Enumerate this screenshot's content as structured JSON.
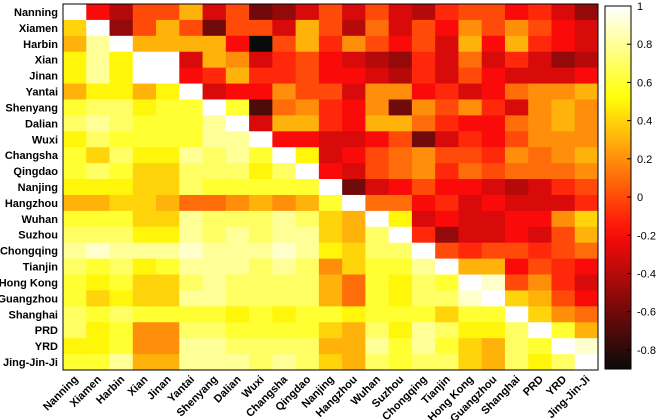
{
  "chart_data": {
    "type": "heatmap",
    "title": "",
    "xlabel": "",
    "ylabel": "",
    "cities": [
      "Nanning",
      "Xiamen",
      "Harbin",
      "Xian",
      "Jinan",
      "Yantai",
      "Shenyang",
      "Dalian",
      "Wuxi",
      "Changsha",
      "Qingdao",
      "Nanjing",
      "Hangzhou",
      "Wuhan",
      "Suzhou",
      "Chongqing",
      "Tianjin",
      "Hong Kong",
      "Guangzhou",
      "Shanghai",
      "PRD",
      "YRD",
      "Jing-Jin-Ji"
    ],
    "colorbar": {
      "range": [
        -0.9,
        1
      ],
      "ticks": [
        -0.8,
        -0.6,
        -0.4,
        -0.2,
        0,
        0.2,
        0.4,
        0.6,
        0.8,
        1
      ],
      "tick_labels": [
        "-0.8",
        "-0.6",
        "-0.4",
        "-0.2",
        "0",
        "0.2",
        "0.4",
        "0.6",
        "0.8",
        "1"
      ],
      "colormap": "hot"
    },
    "values": [
      [
        1,
        -0.2,
        -0.4,
        0,
        0,
        0.3,
        -0.3,
        0,
        -0.6,
        -0.5,
        -0.3,
        0,
        -0.3,
        0,
        -0.3,
        -0.4,
        -0.1,
        0,
        0,
        -0.2,
        -0.1,
        -0.3,
        -0.5
      ],
      [
        0.4,
        1,
        -0.5,
        0,
        0.3,
        0,
        -0.6,
        0,
        0,
        -0.3,
        0.3,
        0,
        -0.4,
        0.1,
        -0.3,
        0,
        -0.2,
        0.2,
        0,
        0.2,
        0,
        -0.2,
        -0.3
      ],
      [
        0.3,
        0.8,
        1,
        0.3,
        0.3,
        0.3,
        0.3,
        -0.2,
        -0.9,
        0,
        0.3,
        -0.1,
        0.2,
        0,
        -0.2,
        0,
        -0.3,
        0.3,
        -0.2,
        0.3,
        -0.1,
        -0.2,
        -0.3
      ],
      [
        0.5,
        0.8,
        0.5,
        1,
        1,
        -0.3,
        0.3,
        0.2,
        -0.3,
        -0.1,
        0,
        -0.2,
        -0.3,
        -0.4,
        -0.5,
        -0.1,
        -0.3,
        0.1,
        -0.3,
        -0.1,
        -0.3,
        -0.5,
        -0.4
      ],
      [
        0.5,
        0.8,
        0.5,
        1,
        1,
        -0.2,
        -0.1,
        0.3,
        -0.1,
        -0.1,
        0,
        -0.2,
        -0.2,
        -0.3,
        -0.4,
        -0.1,
        -0.3,
        0,
        -0.2,
        -0.3,
        -0.3,
        -0.3,
        -0.2
      ],
      [
        0.3,
        0.5,
        0.5,
        0.3,
        0.5,
        1,
        -0.3,
        -0.2,
        -0.2,
        0.2,
        0,
        0,
        -0.3,
        0.2,
        0.2,
        -0.2,
        -0.1,
        -0.3,
        -0.2,
        0.1,
        0.2,
        0.2,
        0.3
      ],
      [
        0.6,
        0.7,
        0.7,
        0.5,
        0.6,
        0.6,
        1,
        0.6,
        -0.7,
        0.1,
        0.2,
        -0.1,
        -0.2,
        0.2,
        -0.6,
        0.2,
        0,
        0.2,
        -0.1,
        -0.3,
        0.2,
        0.3,
        0.2
      ],
      [
        0.7,
        0.8,
        0.7,
        0.6,
        0.6,
        0.6,
        0.8,
        1,
        -0.3,
        0.3,
        0.3,
        -0.1,
        -0.2,
        0.3,
        0.3,
        0.1,
        -0.1,
        -0.2,
        -0.2,
        0.1,
        0.2,
        0.3,
        0.2
      ],
      [
        0.5,
        0.7,
        0.6,
        0.6,
        0.6,
        0.6,
        0.8,
        0.8,
        1,
        -0.2,
        -0.2,
        -0.3,
        -0.3,
        -0.2,
        0,
        -0.6,
        -0.3,
        -0.1,
        -0.2,
        0,
        0.2,
        0.2,
        0.2
      ],
      [
        0.6,
        0.4,
        0.7,
        0.5,
        0.5,
        0.8,
        0.7,
        0.8,
        0.6,
        1,
        0.5,
        -0.3,
        -0.2,
        0,
        0.1,
        0.2,
        0,
        0,
        -0.1,
        0.2,
        0.1,
        0.2,
        0.3
      ],
      [
        0.6,
        0.7,
        0.6,
        0.4,
        0.4,
        0.7,
        0.7,
        0.7,
        0.5,
        0.7,
        1,
        -0.2,
        -0.3,
        0,
        0.1,
        0.2,
        -0.1,
        0.1,
        0,
        0.1,
        0.1,
        0.1,
        0.2
      ],
      [
        0.5,
        0.5,
        0.5,
        0.4,
        0.4,
        0.7,
        0.6,
        0.6,
        0.6,
        0.6,
        0.6,
        1,
        -0.6,
        -0.3,
        -0.2,
        0,
        -0.2,
        -0.2,
        -0.3,
        -0.4,
        -0.3,
        -0.1,
        0
      ],
      [
        0.3,
        0.3,
        0.4,
        0.4,
        0.3,
        0.1,
        0.1,
        0.2,
        0.3,
        0.2,
        0.3,
        0.6,
        1,
        0.1,
        0.1,
        -0.2,
        -0.1,
        -0.3,
        -0.2,
        -0.3,
        -0.3,
        -0.3,
        -0.1
      ],
      [
        0.6,
        0.6,
        0.6,
        0.4,
        0.4,
        0.8,
        0.7,
        0.7,
        0.7,
        0.8,
        0.7,
        0.4,
        0.3,
        1,
        0.5,
        -0.3,
        -0.2,
        -0.3,
        -0.3,
        -0.2,
        -0.2,
        0.2,
        0.4
      ],
      [
        0.7,
        0.7,
        0.7,
        0.5,
        0.5,
        0.8,
        0.7,
        0.8,
        0.7,
        0.8,
        0.8,
        0.4,
        0.3,
        0.7,
        1,
        -0.1,
        -0.5,
        -0.3,
        -0.3,
        -0.2,
        -0.3,
        0,
        0.3
      ],
      [
        0.8,
        0.9,
        0.8,
        0.8,
        0.8,
        0.9,
        0.8,
        0.8,
        0.8,
        0.9,
        0.8,
        0.5,
        0.4,
        0.7,
        0.7,
        1,
        0,
        -0.1,
        0,
        0,
        -0.1,
        0,
        0.1
      ],
      [
        0.7,
        0.6,
        0.7,
        0.5,
        0.6,
        0.8,
        0.8,
        0.8,
        0.7,
        0.8,
        0.7,
        0.2,
        0.4,
        0.6,
        0.6,
        0.8,
        1,
        0.3,
        0.3,
        -0.2,
        0,
        -0.1,
        -0.2
      ],
      [
        0.6,
        0.5,
        0.6,
        0.4,
        0.4,
        0.7,
        0.8,
        0.7,
        0.7,
        0.7,
        0.7,
        0.3,
        0.1,
        0.6,
        0.5,
        0.7,
        0.6,
        1,
        0.9,
        0,
        0.2,
        -0.1,
        -0.3
      ],
      [
        0.6,
        0.4,
        0.5,
        0.4,
        0.4,
        0.8,
        0.8,
        0.7,
        0.7,
        0.7,
        0.7,
        0.3,
        0.1,
        0.6,
        0.5,
        0.7,
        0.7,
        0.9,
        1,
        0.4,
        0.3,
        0,
        -0.2
      ],
      [
        0.7,
        0.6,
        0.7,
        0.6,
        0.6,
        0.6,
        0.6,
        0.5,
        0.6,
        0.5,
        0.6,
        0.6,
        0.5,
        0.6,
        0.6,
        0.6,
        0.4,
        0.6,
        0.6,
        1,
        0.4,
        0.2,
        0.1
      ],
      [
        0.7,
        0.5,
        0.6,
        0.2,
        0.2,
        0.7,
        0.7,
        0.6,
        0.6,
        0.6,
        0.6,
        0.4,
        0.3,
        0.7,
        0.5,
        0.8,
        0.7,
        0.5,
        0.5,
        0.7,
        1,
        0.6,
        0.3
      ],
      [
        0.5,
        0.5,
        0.6,
        0.2,
        0.2,
        0.8,
        0.8,
        0.7,
        0.7,
        0.7,
        0.7,
        0.3,
        0.3,
        0.8,
        0.6,
        0.8,
        0.6,
        0.4,
        0.3,
        0.7,
        0.6,
        1,
        0.9
      ],
      [
        0.6,
        0.6,
        0.8,
        0.3,
        0.3,
        0.8,
        0.8,
        0.8,
        0.7,
        0.8,
        0.7,
        0.4,
        0.3,
        0.7,
        0.6,
        0.7,
        0.7,
        0.4,
        0.3,
        0.7,
        0.5,
        0.7,
        1
      ]
    ]
  }
}
